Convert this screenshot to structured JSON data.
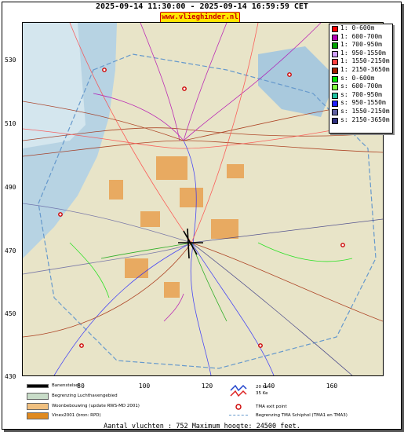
{
  "header": {
    "title": "2025-09-14 11:30:00 - 2025-09-14 16:59:59 CET",
    "brand": "www.vlieghinder.nl"
  },
  "axes": {
    "y_ticks": [
      "530",
      "510",
      "490",
      "470",
      "450",
      "430"
    ],
    "x_ticks": [
      "80",
      "100",
      "120",
      "140",
      "160"
    ]
  },
  "legend": [
    {
      "label": "1: 0-600m",
      "color": "#ff0000"
    },
    {
      "label": "1: 600-700m",
      "color": "#b000b0"
    },
    {
      "label": "1: 700-950m",
      "color": "#00a000"
    },
    {
      "label": "1: 950-1550m",
      "color": "#d0a0ff"
    },
    {
      "label": "1: 1550-2150m",
      "color": "#ff4040"
    },
    {
      "label": "1: 2150-3650m",
      "color": "#a02000"
    },
    {
      "label": "s: 0-600m",
      "color": "#00e000"
    },
    {
      "label": "s: 600-700m",
      "color": "#80ff40"
    },
    {
      "label": "s: 700-950m",
      "color": "#20c0a0"
    },
    {
      "label": "s: 950-1550m",
      "color": "#2020ff"
    },
    {
      "label": "s: 1550-2150m",
      "color": "#6060a0"
    },
    {
      "label": "s: 2150-3650m",
      "color": "#303080"
    }
  ],
  "footer_legend": {
    "runway": "Banenstelsel",
    "airport_boundary": "Begrenzing Luchthavengebied",
    "housing": "Woonbebouwing (update RWS-MD 2001)",
    "vinex": "Vinex2001 (bron: RPD)",
    "noise": "20 Ke\n35 Ke",
    "noise_20": "20 Ke",
    "noise_35": "35 Ke",
    "tma_exit": "TMA exit point",
    "tma_boundary": "Begrenzing TMA Schiphol  (TMA1 en TMA3)"
  },
  "summary": "Aantal vluchten : 752 Maximum hoogte: 24500 feet."
}
